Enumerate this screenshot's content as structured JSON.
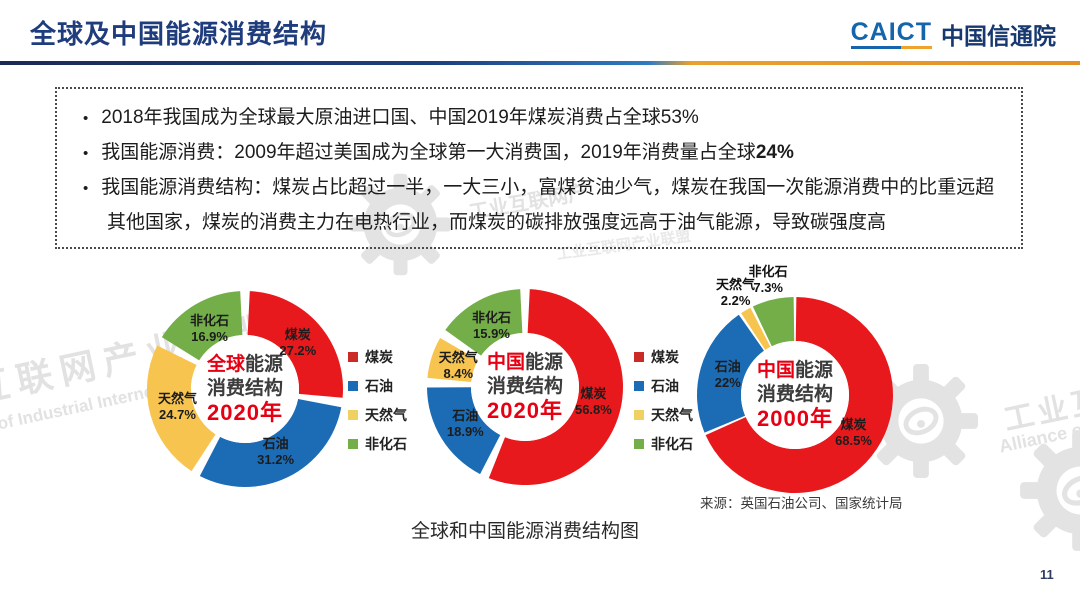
{
  "header": {
    "title": "全球及中国能源消费结构",
    "logo": {
      "caict": "CAICT",
      "cn": "中国信通院"
    }
  },
  "infobox": {
    "bullets": [
      {
        "segments": [
          {
            "text": "2018年我国成为全球最大原油进口国、中国2019年煤炭消费占全球53%",
            "bold": false
          }
        ]
      },
      {
        "segments": [
          {
            "text": "我国能源消费：2009年超过美国成为全球第一大消费国，2019年消费量占全球",
            "bold": false
          },
          {
            "text": "24%",
            "bold": true
          }
        ]
      },
      {
        "segments": [
          {
            "text": "我国能源消费结构：煤炭占比超过一半，一大三小，富煤贫油少气，煤炭在我国一次能源消费中的比重远超其他国家，煤炭的消费主力在电热行业，而煤炭的碳排放强度远高于油气能源，导致碳强度高",
            "bold": false
          }
        ]
      }
    ]
  },
  "chart_data": [
    {
      "type": "donut",
      "title": "全球能源消费结构2020年",
      "center": {
        "highlight": "全球",
        "rest": "能源",
        "line2": "消费结构",
        "year": "2020年"
      },
      "categories": [
        "煤炭",
        "石油",
        "天然气",
        "非化石"
      ],
      "values": [
        27.2,
        31.2,
        24.7,
        16.9
      ],
      "unit": "%",
      "colors": [
        "#e8191c",
        "#1c6cb5",
        "#f7c450",
        "#74ae49"
      ],
      "pad_deg": 2.8,
      "start_angle": 0
    },
    {
      "type": "donut",
      "title": "中国能源消费结构2020年",
      "center": {
        "highlight": "中国",
        "rest": "能源",
        "line2": "消费结构",
        "year": "2020年"
      },
      "categories": [
        "煤炭",
        "石油",
        "天然气",
        "非化石"
      ],
      "values": [
        56.8,
        18.9,
        8.4,
        15.9
      ],
      "unit": "%",
      "colors": [
        "#e8191c",
        "#1c6cb5",
        "#f7c450",
        "#74ae49"
      ],
      "pad_deg": 2.8,
      "start_angle": 0
    },
    {
      "type": "donut",
      "title": "中国能源消费结构2000年",
      "center": {
        "highlight": "中国",
        "rest": "能源",
        "line2": "消费结构",
        "year": "2000年"
      },
      "categories": [
        "煤炭",
        "石油",
        "天然气",
        "非化石"
      ],
      "values": [
        68.5,
        22,
        2.2,
        7.3
      ],
      "unit": "%",
      "colors": [
        "#e8191c",
        "#1c6cb5",
        "#f7c450",
        "#74ae49"
      ],
      "pad_deg": 0.8,
      "start_angle": 0
    }
  ],
  "legend": {
    "items": [
      {
        "label": "煤炭",
        "color": "#cc2a26"
      },
      {
        "label": "石油",
        "color": "#1c6cb5"
      },
      {
        "label": "天然气",
        "color": "#f0d060"
      },
      {
        "label": "非化石",
        "color": "#74ae49"
      }
    ]
  },
  "source": "来源：英国石油公司、国家统计局",
  "caption": "全球和中国能源消费结构图",
  "page_number": "11",
  "watermarks": {
    "cn_left": "互联网产业联盟",
    "en_left": "e of Industrial Internet",
    "cn_mid": "工业互联网产",
    "cn_mid2": "工业互联网产业联盟",
    "cn_right": "工业互联网",
    "en_right": "Alliance of Ind"
  }
}
